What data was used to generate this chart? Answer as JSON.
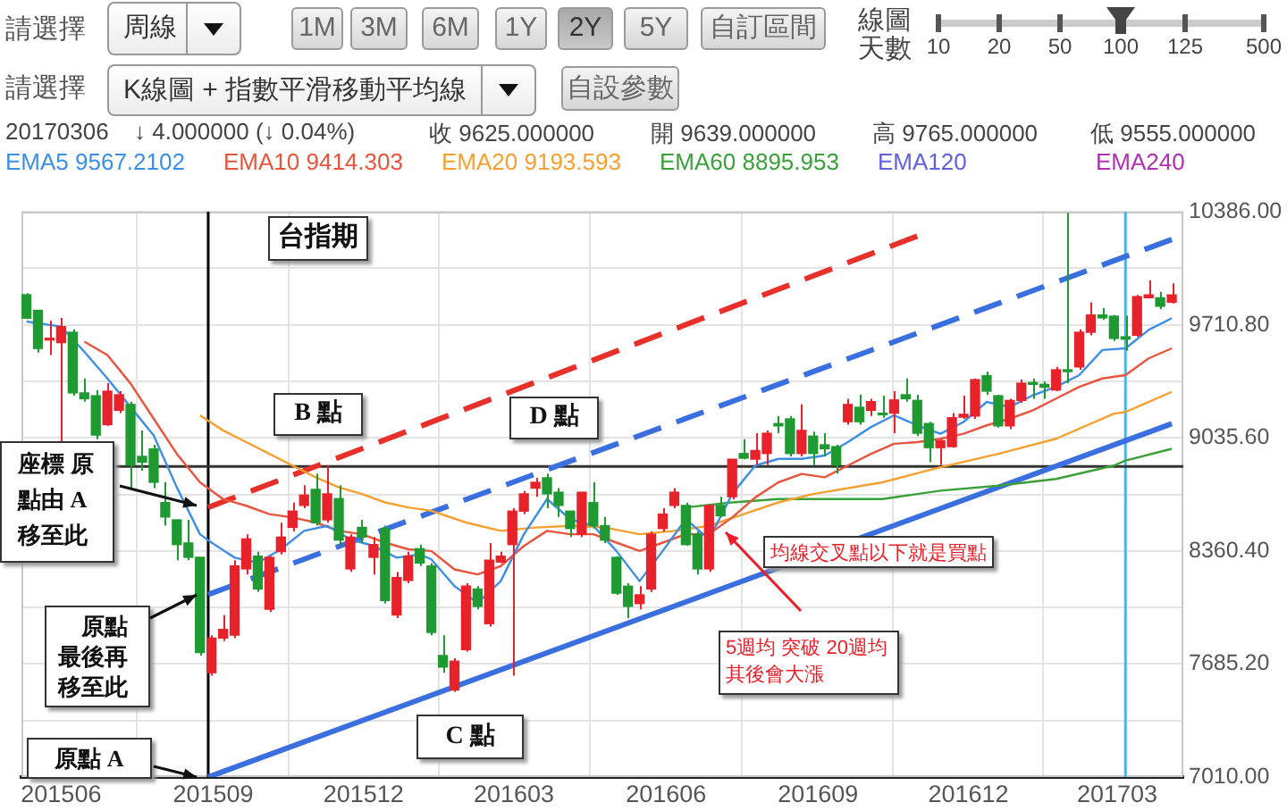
{
  "chart_data": {
    "type": "candlestick",
    "x": [
      "2015-05-11",
      "2015-05-18",
      "2015-05-25",
      "2015-06-01",
      "2015-06-08",
      "2015-06-15",
      "2015-06-22",
      "2015-06-29",
      "2015-07-06",
      "2015-07-13",
      "2015-07-20",
      "2015-07-27",
      "2015-08-03",
      "2015-08-10",
      "2015-08-17",
      "2015-08-24",
      "2015-08-31",
      "2015-09-07",
      "2015-09-14",
      "2015-09-21",
      "2015-09-28",
      "2015-10-05",
      "2015-10-12",
      "2015-10-19",
      "2015-10-26",
      "2015-11-02",
      "2015-11-09",
      "2015-11-16",
      "2015-11-23",
      "2015-11-30",
      "2015-12-07",
      "2015-12-14",
      "2015-12-21",
      "2015-12-28",
      "2016-01-04",
      "2016-01-11",
      "2016-01-18",
      "2016-01-25",
      "2016-02-01",
      "2016-02-08",
      "2016-02-15",
      "2016-02-22",
      "2016-02-29",
      "2016-03-07",
      "2016-03-14",
      "2016-03-21",
      "2016-03-28",
      "2016-04-04",
      "2016-04-11",
      "2016-04-18",
      "2016-04-25",
      "2016-05-02",
      "2016-05-09",
      "2016-05-16",
      "2016-05-23",
      "2016-05-30",
      "2016-06-06",
      "2016-06-13",
      "2016-06-20",
      "2016-06-27",
      "2016-07-04",
      "2016-07-11",
      "2016-07-18",
      "2016-07-25",
      "2016-08-01",
      "2016-08-08",
      "2016-08-15",
      "2016-08-22",
      "2016-08-29",
      "2016-09-05",
      "2016-09-12",
      "2016-09-19",
      "2016-09-26",
      "2016-10-03",
      "2016-10-10",
      "2016-10-17",
      "2016-10-24",
      "2016-10-31",
      "2016-11-07",
      "2016-11-14",
      "2016-11-21",
      "2016-11-28",
      "2016-12-05",
      "2016-12-12",
      "2016-12-19",
      "2016-12-26",
      "2017-01-02",
      "2017-01-09",
      "2017-01-16",
      "2017-01-23",
      "2017-01-30",
      "2017-02-06",
      "2017-02-13",
      "2017-02-20",
      "2017-02-27",
      "2017-03-06",
      "2017-03-13",
      "2017-03-20",
      "2017-03-27",
      "2017-04-03"
    ],
    "ohlc": [
      [
        9890,
        9900,
        9745,
        9750
      ],
      [
        9797,
        9800,
        9545,
        9569
      ],
      [
        9620,
        9735,
        9530,
        9630
      ],
      [
        9604,
        9752,
        9011,
        9700
      ],
      [
        9666,
        9683,
        9287,
        9304
      ],
      [
        9304,
        9390,
        9252,
        9269
      ],
      [
        9287,
        9321,
        9028,
        9052
      ],
      [
        9114,
        9362,
        9107,
        9314
      ],
      [
        9200,
        9314,
        9183,
        9293
      ],
      [
        9235,
        9252,
        8735,
        8873
      ],
      [
        8925,
        9080,
        8839,
        8890
      ],
      [
        8970,
        8994,
        8735,
        8770
      ],
      [
        8649,
        8770,
        8511,
        8563
      ],
      [
        8546,
        8546,
        8305,
        8398
      ],
      [
        8408,
        8546,
        8305,
        8322
      ],
      [
        8322,
        8322,
        7736,
        7754
      ],
      [
        7633,
        7857,
        7616,
        7840
      ],
      [
        7840,
        7977,
        7822,
        7892
      ],
      [
        7857,
        8305,
        7840,
        8270
      ],
      [
        8253,
        8460,
        8219,
        8432
      ],
      [
        8329,
        8356,
        8115,
        8133
      ],
      [
        8012,
        8329,
        7995,
        8322
      ],
      [
        8356,
        8529,
        8339,
        8443
      ],
      [
        8501,
        8649,
        8477,
        8598
      ],
      [
        8632,
        8753,
        8615,
        8694
      ],
      [
        8728,
        8822,
        8511,
        8529
      ],
      [
        8546,
        8873,
        8529,
        8701
      ],
      [
        8673,
        8753,
        8391,
        8425
      ],
      [
        8253,
        8460,
        8236,
        8443
      ],
      [
        8501,
        8546,
        8408,
        8443
      ],
      [
        8322,
        8443,
        8219,
        8398
      ],
      [
        8494,
        8511,
        8046,
        8064
      ],
      [
        7978,
        8236,
        7960,
        8201
      ],
      [
        8184,
        8356,
        8167,
        8329
      ],
      [
        8374,
        8398,
        8270,
        8288
      ],
      [
        8270,
        8288,
        7857,
        7874
      ],
      [
        7736,
        7857,
        7633,
        7667
      ],
      [
        7530,
        7719,
        7520,
        7702
      ],
      [
        7771,
        8167,
        7760,
        8150
      ],
      [
        8133,
        8150,
        8012,
        8029
      ],
      [
        7926,
        8408,
        7909,
        8305
      ],
      [
        8294,
        8356,
        8288,
        8329
      ],
      [
        8398,
        8615,
        7616,
        8598
      ],
      [
        8598,
        8718,
        8580,
        8701
      ],
      [
        8735,
        8797,
        8684,
        8770
      ],
      [
        8797,
        8822,
        8615,
        8701
      ],
      [
        8711,
        8735,
        8563,
        8632
      ],
      [
        8598,
        8598,
        8443,
        8494
      ],
      [
        8460,
        8711,
        8443,
        8711
      ],
      [
        8649,
        8770,
        8494,
        8511
      ],
      [
        8511,
        8563,
        8408,
        8425
      ],
      [
        8322,
        8329,
        8098,
        8108
      ],
      [
        8150,
        8167,
        7960,
        8029
      ],
      [
        8046,
        8150,
        8012,
        8098
      ],
      [
        8133,
        8477,
        8115,
        8460
      ],
      [
        8494,
        8615,
        8477,
        8580
      ],
      [
        8632,
        8735,
        8615,
        8711
      ],
      [
        8632,
        8649,
        8391,
        8398
      ],
      [
        8460,
        8477,
        8219,
        8253
      ],
      [
        8253,
        8632,
        8236,
        8632
      ],
      [
        8632,
        8684,
        8563,
        8570
      ],
      [
        8684,
        8908,
        8667,
        8908
      ],
      [
        8942,
        9028,
        8908,
        8914
      ],
      [
        8908,
        9063,
        8873,
        8960
      ],
      [
        8942,
        9080,
        8873,
        9063
      ],
      [
        9121,
        9166,
        9063,
        9107
      ],
      [
        9149,
        9166,
        8925,
        8942
      ],
      [
        8942,
        9235,
        8925,
        9080
      ],
      [
        9046,
        9073,
        8873,
        8942
      ],
      [
        8994,
        9063,
        8925,
        8970
      ],
      [
        8983,
        8994,
        8822,
        8873
      ],
      [
        9132,
        9269,
        9114,
        9235
      ],
      [
        9218,
        9293,
        9114,
        9132
      ],
      [
        9200,
        9269,
        9166,
        9252
      ],
      [
        9183,
        9287,
        9156,
        9173
      ],
      [
        9183,
        9314,
        9063,
        9262
      ],
      [
        9293,
        9390,
        9252,
        9269
      ],
      [
        9259,
        9293,
        9046,
        9063
      ],
      [
        9121,
        9132,
        8890,
        8977
      ],
      [
        8977,
        9028,
        8873,
        9018
      ],
      [
        8983,
        9183,
        8977,
        9156
      ],
      [
        9159,
        9287,
        9149,
        9176
      ],
      [
        9166,
        9390,
        9149,
        9383
      ],
      [
        9407,
        9431,
        9293,
        9314
      ],
      [
        9287,
        9293,
        9097,
        9107
      ],
      [
        9107,
        9269,
        9087,
        9259
      ],
      [
        9259,
        9383,
        9245,
        9362
      ],
      [
        9366,
        9390,
        9269,
        9355
      ],
      [
        9355,
        9373,
        9269,
        9338
      ],
      [
        9321,
        9459,
        9314,
        9442
      ],
      [
        9442,
        10380,
        9362,
        9431
      ],
      [
        9459,
        9683,
        9442,
        9666
      ],
      [
        9666,
        9845,
        9648,
        9769
      ],
      [
        9769,
        9810,
        9741,
        9752
      ],
      [
        9762,
        9769,
        9614,
        9629
      ],
      [
        9639,
        9765,
        9555,
        9625
      ],
      [
        9648,
        9889,
        9638,
        9879
      ],
      [
        9872,
        9976,
        9872,
        9889
      ],
      [
        9872,
        9907,
        9803,
        9821
      ],
      [
        9845,
        9958,
        9838,
        9889
      ]
    ],
    "series": [
      {
        "name": "EMA5 9567.2102",
        "type": "line",
        "color": "#3d8fe6",
        "x": [
          "2015-05-11",
          "2015-06-01",
          "2015-06-15",
          "2015-06-29",
          "2015-07-13",
          "2015-07-27",
          "2015-08-10",
          "2015-08-24",
          "2015-08-31",
          "2015-09-14",
          "2015-09-28",
          "2015-10-12",
          "2015-10-26",
          "2015-11-09",
          "2015-11-23",
          "2015-12-07",
          "2015-12-21",
          "2016-01-04",
          "2016-01-11",
          "2016-01-25",
          "2016-02-08",
          "2016-02-22",
          "2016-03-07",
          "2016-03-21",
          "2016-04-04",
          "2016-04-18",
          "2016-05-02",
          "2016-05-16",
          "2016-05-30",
          "2016-06-13",
          "2016-06-27",
          "2016-07-11",
          "2016-07-25",
          "2016-08-08",
          "2016-08-22",
          "2016-09-05",
          "2016-09-19",
          "2016-10-03",
          "2016-10-17",
          "2016-10-31",
          "2016-11-14",
          "2016-11-28",
          "2016-12-12",
          "2016-12-26",
          "2017-01-09",
          "2017-01-23",
          "2017-02-06",
          "2017-02-20",
          "2017-03-06",
          "2017-03-20",
          "2017-04-03"
        ],
        "values": [
          9730,
          9700,
          9550,
          9390,
          9220,
          9050,
          8740,
          8460,
          8410,
          8320,
          8290,
          8370,
          8480,
          8510,
          8430,
          8390,
          8320,
          8340,
          8310,
          8150,
          8050,
          8180,
          8460,
          8670,
          8550,
          8510,
          8360,
          8180,
          8360,
          8550,
          8430,
          8700,
          8870,
          8910,
          8910,
          8930,
          9010,
          9100,
          9170,
          9110,
          9060,
          9130,
          9250,
          9220,
          9290,
          9340,
          9410,
          9560,
          9570,
          9680,
          9750
        ]
      },
      {
        "name": "EMA10 9414.303",
        "type": "line",
        "color": "#e8553f",
        "x": [
          "2015-06-15",
          "2015-06-29",
          "2015-07-13",
          "2015-07-27",
          "2015-08-10",
          "2015-08-24",
          "2015-09-07",
          "2015-09-21",
          "2015-10-05",
          "2015-10-19",
          "2015-11-02",
          "2015-11-16",
          "2015-11-30",
          "2015-12-14",
          "2015-12-28",
          "2016-01-11",
          "2016-01-25",
          "2016-02-08",
          "2016-02-22",
          "2016-03-07",
          "2016-03-21",
          "2016-04-04",
          "2016-04-18",
          "2016-05-02",
          "2016-05-16",
          "2016-05-30",
          "2016-06-13",
          "2016-06-27",
          "2016-07-11",
          "2016-07-25",
          "2016-08-08",
          "2016-08-22",
          "2016-09-05",
          "2016-09-19",
          "2016-10-03",
          "2016-10-17",
          "2016-10-31",
          "2016-11-14",
          "2016-11-28",
          "2016-12-12",
          "2016-12-26",
          "2017-01-09",
          "2017-01-23",
          "2017-02-06",
          "2017-02-20",
          "2017-03-06",
          "2017-03-20",
          "2017-04-03"
        ],
        "values": [
          9610,
          9530,
          9360,
          9150,
          8940,
          8770,
          8670,
          8630,
          8580,
          8560,
          8530,
          8480,
          8460,
          8410,
          8370,
          8360,
          8250,
          8220,
          8270,
          8390,
          8480,
          8460,
          8460,
          8410,
          8360,
          8410,
          8460,
          8460,
          8560,
          8680,
          8770,
          8820,
          8800,
          8870,
          8940,
          9000,
          9010,
          9030,
          9060,
          9110,
          9150,
          9200,
          9270,
          9340,
          9390,
          9410,
          9510,
          9570
        ]
      },
      {
        "name": "EMA20 9193.593",
        "type": "line",
        "color": "#f5a030",
        "x": [
          "2015-08-24",
          "2015-09-07",
          "2015-09-21",
          "2015-10-05",
          "2015-10-19",
          "2015-11-02",
          "2015-11-16",
          "2015-11-30",
          "2015-12-14",
          "2015-12-28",
          "2016-01-11",
          "2016-02-01",
          "2016-02-22",
          "2016-03-14",
          "2016-04-04",
          "2016-04-25",
          "2016-05-16",
          "2016-06-06",
          "2016-06-27",
          "2016-07-18",
          "2016-08-08",
          "2016-08-29",
          "2016-10-10",
          "2016-11-14",
          "2016-12-19",
          "2017-01-23",
          "2017-02-27",
          "2017-03-06",
          "2017-04-03"
        ],
        "values": [
          9170,
          9080,
          9010,
          8940,
          8870,
          8800,
          8740,
          8700,
          8650,
          8620,
          8600,
          8530,
          8480,
          8500,
          8510,
          8500,
          8460,
          8480,
          8510,
          8580,
          8650,
          8700,
          8770,
          8860,
          8940,
          9030,
          9180,
          9190,
          9310
        ]
      },
      {
        "name": "EMA60 8895.953",
        "type": "line",
        "color": "#3aa03a",
        "x": [
          "2016-06-13",
          "2016-07-11",
          "2016-08-08",
          "2016-08-29",
          "2016-10-10",
          "2016-11-14",
          "2016-12-19",
          "2017-01-23",
          "2017-02-27",
          "2017-03-06",
          "2017-04-03"
        ],
        "values": [
          8620,
          8650,
          8670,
          8670,
          8670,
          8720,
          8750,
          8790,
          8870,
          8900,
          8970
        ]
      },
      {
        "type": "line",
        "color": "#3a6fe0",
        "line_style": "solid",
        "x": [
          "2015-08-29",
          "2017-04-03"
        ],
        "values": [
          7010,
          9120
        ]
      },
      {
        "type": "line",
        "color": "#3a6fe0",
        "line_style": "dashed",
        "x": [
          "2015-08-29",
          "2017-04-03"
        ],
        "values": [
          8100,
          10220
        ]
      },
      {
        "type": "line",
        "color": "#e8302a",
        "line_style": "dashed",
        "x": [
          "2015-08-29",
          "2016-10-31"
        ],
        "values": [
          8620,
          10240
        ]
      }
    ],
    "xlim": [
      "2015-05-08",
      "2017-04-10"
    ],
    "xticks": [
      {
        "value": "2015-06-01",
        "label": "201506"
      },
      {
        "value": "2015-09-01",
        "label": "201509"
      },
      {
        "value": "2015-12-01",
        "label": "201512"
      },
      {
        "value": "2016-03-01",
        "label": "201603"
      },
      {
        "value": "2016-06-01",
        "label": "201606"
      },
      {
        "value": "2016-09-01",
        "label": "201609"
      },
      {
        "value": "2016-12-01",
        "label": "201612"
      },
      {
        "value": "2017-03-01",
        "label": "201703"
      }
    ],
    "ylim": [
      7010,
      10386
    ],
    "yticks": [
      {
        "value": 7010,
        "label": "7010.00"
      },
      {
        "value": 7347.6,
        "label": null
      },
      {
        "value": 7685.2,
        "label": "7685.20"
      },
      {
        "value": 8022.8,
        "label": null
      },
      {
        "value": 8360.4,
        "label": "8360.40"
      },
      {
        "value": 8698,
        "label": null
      },
      {
        "value": 9035.6,
        "label": "9035.60"
      },
      {
        "value": 9373.2,
        "label": null
      },
      {
        "value": 9710.8,
        "label": "9710.80"
      },
      {
        "value": 10048.4,
        "label": null
      },
      {
        "value": 10386,
        "label": "10386.00"
      }
    ],
    "ref_lines": [
      {
        "axis": "x",
        "value": "2015-08-29",
        "color": "#000000"
      },
      {
        "axis": "x",
        "value": "2017-03-06",
        "color": "#4fb3e8"
      },
      {
        "axis": "y",
        "value": 8865,
        "color": "#333333"
      }
    ],
    "grid": true,
    "legend": "top left",
    "marker": "none",
    "annotations": [
      "請選擇",
      "周線",
      "1M",
      "3M",
      "6M",
      "1Y",
      "2Y",
      "5Y",
      "自訂區間",
      "線圖",
      "天數",
      "10",
      "20",
      "50",
      "100",
      "125",
      "500",
      "請選擇",
      "K線圖 + 指數平滑移動平均線",
      "自設參數",
      "20170306",
      "↓ 4.000000 (↓ 0.04%)",
      "收 9625.000000",
      "開 9639.000000",
      "高 9765.000000",
      "低 9555.000000",
      "EMA120",
      "EMA240",
      "台指期",
      "B 點",
      "D 點",
      "C 點",
      "座標 原點由 A移至此",
      "原點最後再移至此",
      "原點 A",
      "均線交叉點以下就是買點",
      "5週均 突破 20週均其後會大漲"
    ]
  }
}
